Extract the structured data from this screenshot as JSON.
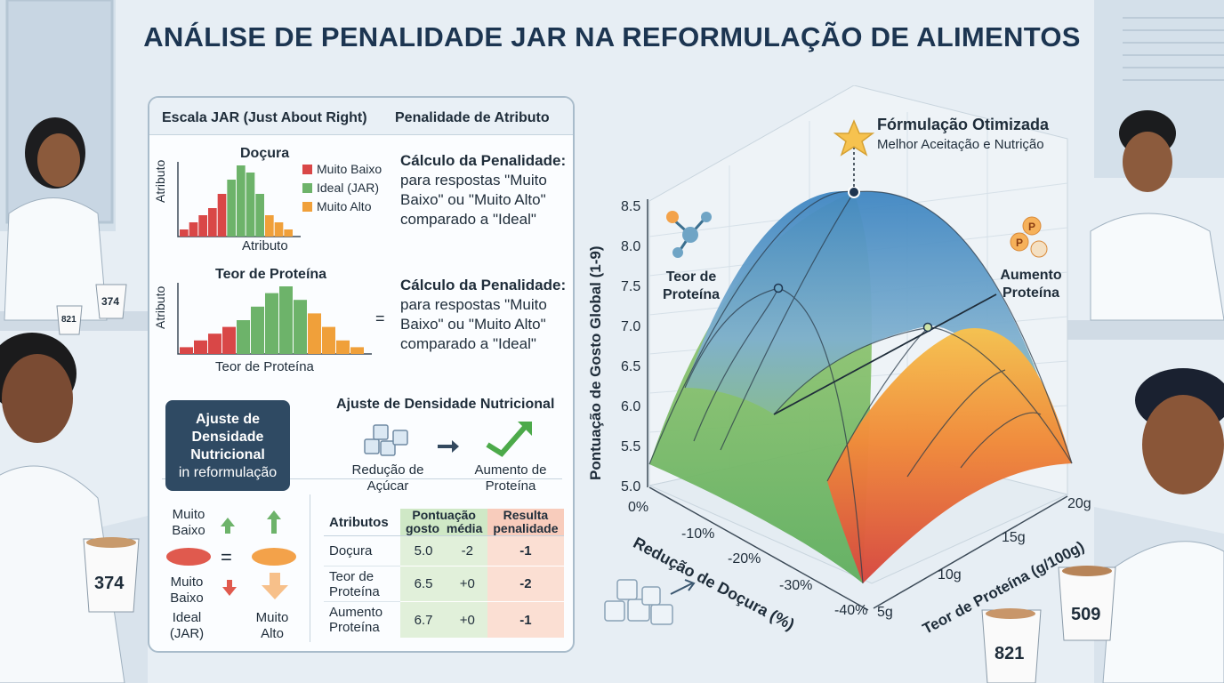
{
  "title": "ANÁLISE DE PENALIDADE JAR NA REFORMULAÇÃO DE ALIMENTOS",
  "panel": {
    "header_left": "Escala JAR (Just About Right)",
    "header_right": "Penalidade de Atributo",
    "chart1": {
      "title": "Doçura",
      "ylabel": "Atributo",
      "xlabel": "Atributo",
      "legend": [
        "Muito Baixo",
        "Ideal (JAR)",
        "Muito Alto"
      ],
      "values": [
        1,
        2,
        3,
        4,
        6,
        8,
        10,
        9,
        6,
        3,
        2,
        1
      ],
      "colors": [
        "#d94747",
        "#d94747",
        "#d94747",
        "#d94747",
        "#d94747",
        "#6db36a",
        "#6db36a",
        "#6db36a",
        "#6db36a",
        "#f0a03a",
        "#f0a03a",
        "#f0a03a"
      ]
    },
    "chart2": {
      "title": "Teor de Proteína",
      "ylabel": "Atributo",
      "xlabel": "Teor de Proteína",
      "values": [
        1,
        2,
        3,
        4,
        5,
        7,
        9,
        10,
        8,
        6,
        4,
        2,
        1
      ],
      "colors": [
        "#d94747",
        "#d94747",
        "#d94747",
        "#d94747",
        "#6db36a",
        "#6db36a",
        "#6db36a",
        "#6db36a",
        "#6db36a",
        "#f0a03a",
        "#f0a03a",
        "#f0a03a",
        "#f0a03a"
      ]
    },
    "calc1": {
      "title": "Cálculo da Penalidade:",
      "lines": [
        "para respostas \"Muito",
        "Baixo\" ou \"Muito Alto\"",
        "comparado a \"Ideal\""
      ]
    },
    "calc2": {
      "title": "Cálculo da Penalidade:",
      "lines": [
        "para respostas \"Muito",
        "Baixo\" ou \"Muito Alto\"",
        "comparado a \"Ideal\""
      ],
      "eq": "="
    },
    "density_box": {
      "line1": "Ajuste de",
      "line2": "Densidade",
      "line3": "Nutricional",
      "line4": "in reformulação"
    },
    "density_title": "Ajuste de Densidade Nutricional",
    "sugar_label": [
      "Redução de",
      "Açúcar"
    ],
    "protein_label": [
      "Aumento de",
      "Proteína"
    ],
    "scale_labels": {
      "muito_baixo_1": [
        "Muito",
        "Baixo"
      ],
      "eq": "=",
      "muito_baixo_2": [
        "Muito",
        "Baixo"
      ],
      "ideal": [
        "Ideal",
        "(JAR)"
      ],
      "muito_alto": [
        "Muito",
        "Alto"
      ]
    },
    "table": {
      "headers": [
        "Atributos",
        "Pontuação",
        "gosto",
        "média",
        "Resulta",
        "penalidade"
      ],
      "rows": [
        {
          "attr": [
            "Doçura"
          ],
          "score": "5.0",
          "mean": "-2",
          "penalty": "-1"
        },
        {
          "attr": [
            "Teor de",
            "Proteína"
          ],
          "score": "6.5",
          "mean": "+0",
          "penalty": "-2"
        },
        {
          "attr": [
            "Aumento",
            "Proteína"
          ],
          "score": "6.7",
          "mean": "+0",
          "penalty": "-1"
        }
      ]
    }
  },
  "chart3d": {
    "zlabel": "Pontuação de Gosto Global (1-9)",
    "xlabel": "Redução de Doçura (%)",
    "ylabel": "Teor de Proteína (g/100g)",
    "z_ticks": [
      "8.5",
      "8.0",
      "7.5",
      "7.0",
      "6.5",
      "6.0",
      "5.5",
      "5.0"
    ],
    "x_ticks": [
      "0%",
      "-10%",
      "-20%",
      "-30%",
      "-40%"
    ],
    "y_ticks": [
      "5g",
      "10g",
      "15g",
      "20g"
    ],
    "optimum_title": "Fórmulação Otimizada",
    "optimum_sub": "Melhor Aceitação e Nutrição",
    "annot_left": [
      "Teor de",
      "Proteína"
    ],
    "annot_right": [
      "Aumento",
      "Proteína"
    ]
  },
  "cups": [
    "374",
    "821",
    "374",
    "509",
    "821"
  ]
}
